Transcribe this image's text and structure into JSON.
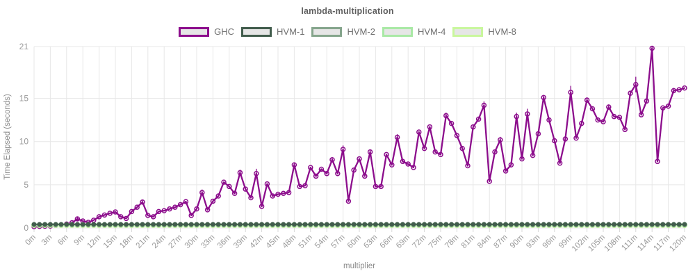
{
  "chart_data": {
    "type": "line",
    "title": "lambda-multiplication",
    "xlabel": "multiplier",
    "ylabel": "Time Elapsed (seconds)",
    "x_start": 0,
    "x_end": 120,
    "x_step": 1,
    "x_tick_step": 3,
    "x_tick_suffix": "m",
    "y_ticks": [
      0,
      5,
      10,
      15,
      21
    ],
    "ylim": [
      0,
      21
    ],
    "grid": true,
    "legend_position": "top-center",
    "series": [
      {
        "name": "GHC",
        "color": "#8c0d8c",
        "marker": "open-circle",
        "values": [
          0.15,
          0.18,
          0.2,
          0.22,
          0.3,
          0.35,
          0.45,
          0.6,
          1.05,
          0.8,
          0.65,
          0.9,
          1.3,
          1.5,
          1.7,
          1.85,
          1.3,
          1.1,
          1.9,
          2.4,
          3.0,
          1.45,
          1.3,
          1.9,
          2.0,
          2.2,
          2.4,
          2.7,
          3.05,
          1.45,
          2.2,
          4.1,
          2.1,
          3.1,
          3.7,
          5.3,
          4.8,
          4.0,
          6.4,
          4.5,
          3.5,
          6.3,
          2.5,
          5.1,
          3.7,
          3.9,
          4.0,
          4.1,
          7.3,
          4.8,
          4.9,
          7.0,
          6.0,
          6.8,
          6.3,
          7.9,
          6.3,
          9.1,
          3.1,
          6.7,
          8.0,
          6.0,
          8.8,
          4.8,
          4.8,
          8.5,
          7.3,
          10.5,
          7.7,
          7.4,
          7.0,
          11.1,
          9.2,
          11.7,
          8.8,
          8.5,
          13.0,
          12.1,
          10.7,
          9.2,
          7.2,
          11.7,
          12.6,
          14.2,
          5.4,
          8.8,
          10.2,
          6.6,
          7.3,
          12.9,
          8.0,
          13.2,
          8.4,
          10.9,
          15.1,
          12.5,
          10.1,
          7.5,
          10.3,
          15.7,
          10.4,
          12.1,
          14.8,
          13.8,
          12.5,
          12.3,
          14.0,
          12.9,
          12.8,
          11.4,
          15.6,
          16.6,
          13.1,
          14.7,
          20.8,
          7.7,
          13.9,
          14.1,
          15.9,
          16.0,
          16.2
        ],
        "error_bars": {
          "8": 0.25,
          "20": 0.3,
          "31": 0.35,
          "38": 0.35,
          "41": 0.55,
          "48": 0.3,
          "55": 0.3,
          "57": 0.45,
          "62": 0.3,
          "67": 0.35,
          "76": 0.35,
          "83": 0.45,
          "86": 0.35,
          "89": 0.45,
          "91": 0.6,
          "94": 0.3,
          "99": 0.75,
          "102": 0.3,
          "106": 0.3,
          "110": 0.3,
          "111": 0.9,
          "114": 0.35,
          "118": 0.3
        }
      },
      {
        "name": "HVM-1",
        "color": "#415c4c",
        "marker": "filled-circle",
        "constant_value": 0.42
      },
      {
        "name": "HVM-2",
        "color": "#85a58c",
        "marker": "filled-circle",
        "constant_value": 0.4
      },
      {
        "name": "HVM-4",
        "color": "#a9e9a5",
        "marker": "filled-circle",
        "constant_value": 0.36
      },
      {
        "name": "HVM-8",
        "color": "#c9f79d",
        "marker": "filled-circle",
        "constant_value": 0.32
      }
    ],
    "style_colors": {
      "grid": "#e7e7e7",
      "tick_stub": "#d8d8d8",
      "tick_label": "#999999",
      "axis_title": "#8a8a8a",
      "title": "#5f5f5f",
      "legend_swatch_fill": "#e6e6e6"
    }
  }
}
